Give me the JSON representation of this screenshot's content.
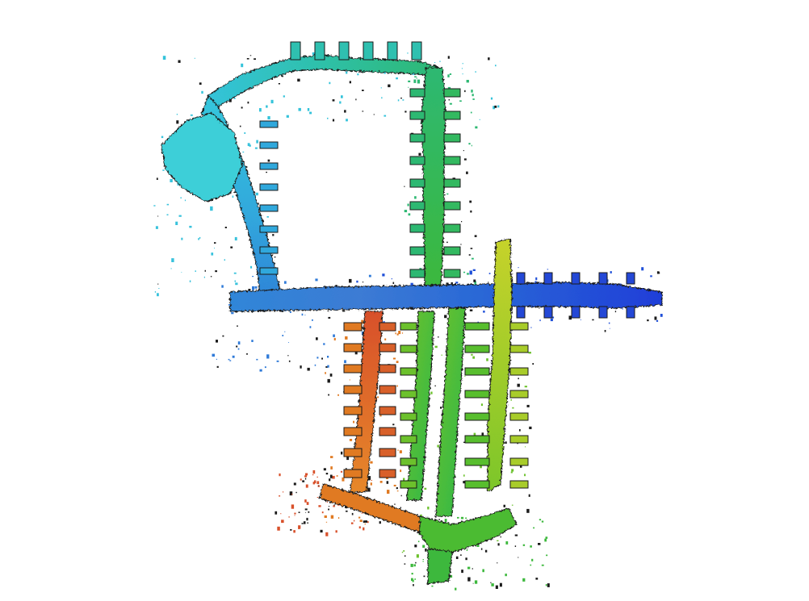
{
  "image": {
    "subject": "point-cloud-map",
    "background_color": "#ffffff",
    "colormap": [
      "#1e3fd6",
      "#2f7ad8",
      "#33b9dc",
      "#3ccfd6",
      "#2fbf88",
      "#2db84a",
      "#6cc12c",
      "#b8cf2a",
      "#e07a22",
      "#d8502a",
      "#c0392b"
    ],
    "outline_color": "#1a1a1a"
  }
}
